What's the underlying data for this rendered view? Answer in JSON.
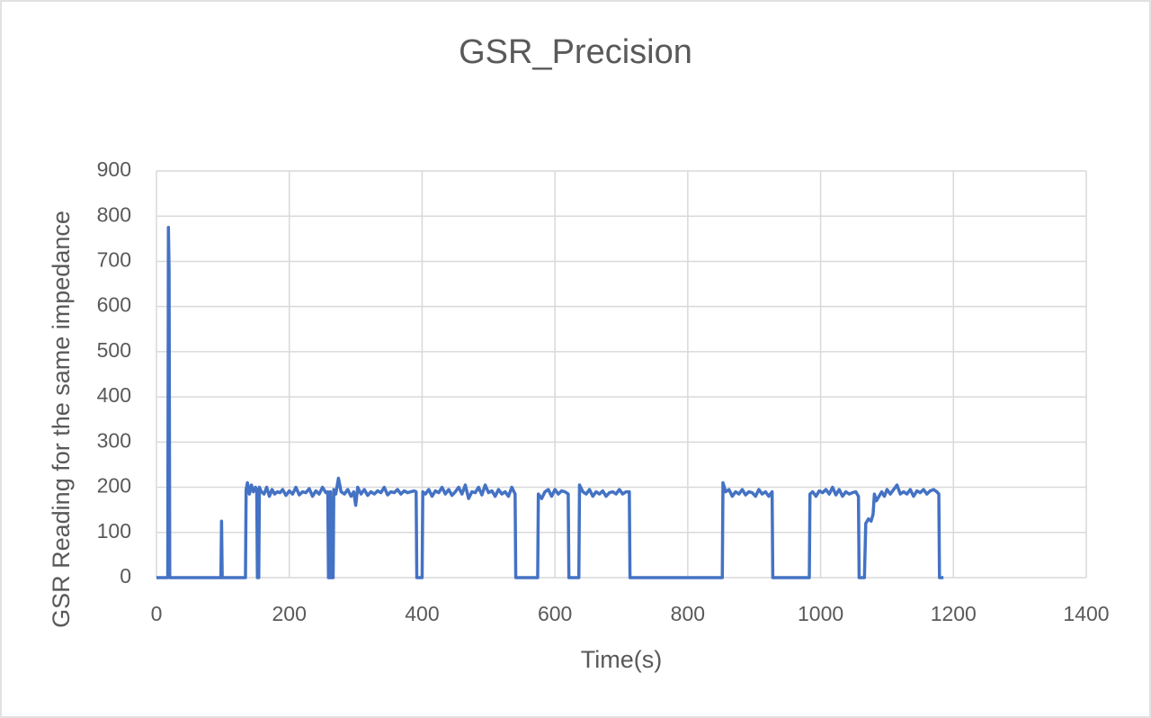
{
  "chart_data": {
    "type": "line",
    "title": "GSR_Precision",
    "x_label": "Time(s)",
    "y_label": "GSR Reading for the same impedance",
    "color": "#4472c4",
    "grid": true,
    "xlim": [
      0,
      1400
    ],
    "xticks": [
      0,
      200,
      400,
      600,
      800,
      1000,
      1200,
      1400
    ],
    "ylim": [
      0,
      900
    ],
    "yticks": [
      0,
      100,
      200,
      300,
      400,
      500,
      600,
      700,
      800,
      900
    ],
    "x": [
      0,
      17,
      18,
      19,
      20,
      97,
      98,
      99,
      134,
      135,
      137,
      140,
      143,
      146,
      149,
      151,
      152,
      154,
      155,
      158,
      162,
      166,
      170,
      174,
      178,
      182,
      186,
      190,
      195,
      200,
      205,
      210,
      215,
      220,
      225,
      230,
      235,
      240,
      245,
      250,
      255,
      258,
      259,
      261,
      262,
      263,
      266,
      267,
      270,
      274,
      278,
      283,
      288,
      293,
      297,
      300,
      303,
      308,
      313,
      318,
      323,
      328,
      333,
      338,
      343,
      348,
      353,
      358,
      363,
      368,
      373,
      378,
      383,
      388,
      391,
      392,
      400,
      401,
      405,
      410,
      415,
      420,
      425,
      430,
      435,
      440,
      445,
      450,
      455,
      460,
      465,
      470,
      475,
      480,
      485,
      490,
      495,
      500,
      505,
      510,
      515,
      520,
      525,
      530,
      535,
      540,
      541,
      574,
      575,
      580,
      585,
      590,
      595,
      600,
      605,
      610,
      615,
      620,
      621,
      636,
      637,
      642,
      647,
      652,
      657,
      662,
      667,
      672,
      677,
      682,
      687,
      692,
      697,
      702,
      707,
      712,
      713,
      852,
      853,
      857,
      862,
      867,
      872,
      877,
      882,
      887,
      892,
      897,
      902,
      907,
      912,
      917,
      922,
      927,
      928,
      983,
      984,
      988,
      993,
      998,
      1003,
      1008,
      1013,
      1018,
      1023,
      1028,
      1033,
      1038,
      1043,
      1048,
      1053,
      1057,
      1058,
      1066,
      1068,
      1072,
      1076,
      1079,
      1081,
      1084,
      1088,
      1092,
      1096,
      1100,
      1105,
      1110,
      1115,
      1120,
      1125,
      1130,
      1135,
      1140,
      1145,
      1150,
      1155,
      1160,
      1165,
      1170,
      1175,
      1178,
      1179,
      1185
    ],
    "values": [
      0,
      0,
      775,
      680,
      0,
      0,
      125,
      0,
      0,
      195,
      210,
      185,
      205,
      190,
      200,
      195,
      0,
      0,
      200,
      190,
      185,
      200,
      180,
      195,
      185,
      190,
      188,
      195,
      182,
      192,
      185,
      200,
      183,
      190,
      188,
      197,
      180,
      192,
      185,
      200,
      188,
      190,
      0,
      0,
      190,
      0,
      0,
      195,
      185,
      220,
      190,
      185,
      195,
      180,
      190,
      160,
      200,
      185,
      195,
      182,
      190,
      185,
      192,
      188,
      200,
      183,
      190,
      188,
      195,
      185,
      192,
      188,
      190,
      192,
      190,
      0,
      0,
      190,
      185,
      195,
      180,
      192,
      188,
      200,
      185,
      195,
      182,
      190,
      200,
      185,
      205,
      175,
      190,
      188,
      200,
      183,
      205,
      188,
      192,
      180,
      195,
      185,
      190,
      180,
      200,
      185,
      0,
      0,
      185,
      175,
      190,
      195,
      180,
      195,
      185,
      192,
      190,
      185,
      0,
      0,
      205,
      190,
      185,
      195,
      180,
      190,
      185,
      192,
      180,
      188,
      190,
      185,
      195,
      185,
      190,
      190,
      0,
      0,
      210,
      190,
      195,
      180,
      190,
      185,
      195,
      183,
      190,
      188,
      180,
      195,
      185,
      190,
      180,
      190,
      0,
      0,
      185,
      190,
      180,
      192,
      188,
      195,
      185,
      200,
      183,
      195,
      180,
      190,
      185,
      188,
      190,
      180,
      0,
      0,
      120,
      130,
      125,
      140,
      185,
      170,
      180,
      190,
      180,
      195,
      185,
      195,
      205,
      185,
      190,
      185,
      195,
      180,
      192,
      188,
      195,
      185,
      192,
      195,
      190,
      185,
      0,
      0
    ]
  }
}
